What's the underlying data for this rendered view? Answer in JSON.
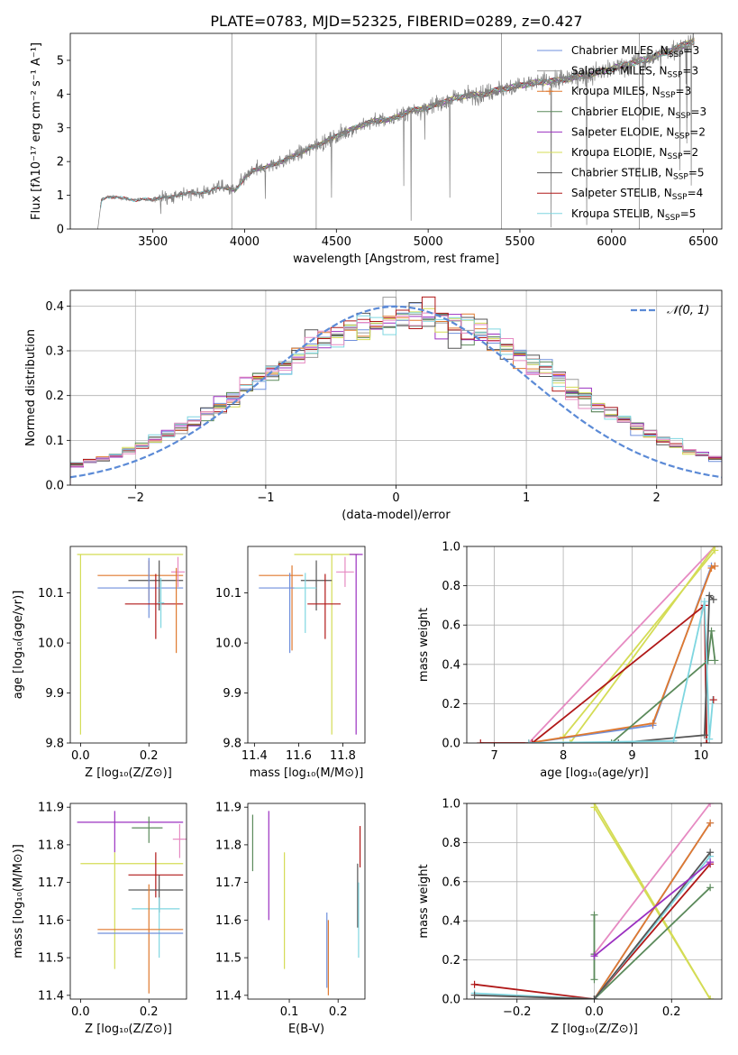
{
  "figure": {
    "title": "PLATE=0783, MJD=52325, FIBERID=0289, z=0.427"
  },
  "colors": {
    "chabrier_miles": "#6f8fdc",
    "salpeter_miles": "#9b9b9b",
    "kroupa_miles": "#e0792e",
    "chabrier_elodie": "#5b8a5b",
    "salpeter_elodie": "#9b30c0",
    "kroupa_elodie": "#d4dc55",
    "chabrier_stelib": "#555555",
    "salpeter_stelib": "#b01818",
    "kroupa_stelib": "#7fd6e0",
    "pink": "#e68ac2",
    "data": "#808080",
    "gauss": "#5b8ad6"
  },
  "chart_data": [
    {
      "type": "line",
      "id": "spectrum",
      "xlabel": "wavelength [Angstrom, rest frame]",
      "ylabel": "Flux [fλ10⁻¹⁷ erg cm⁻² s⁻¹ A⁻¹]",
      "xlim": [
        3050,
        6600
      ],
      "ylim": [
        0,
        5.8
      ],
      "xticks": [
        3500,
        4000,
        4500,
        5000,
        5500,
        6000,
        6500
      ],
      "yticks": [
        0,
        1,
        2,
        3,
        4,
        5
      ],
      "legend": "top-right",
      "legend_entries": [
        {
          "key": "chabrier_miles",
          "label": "Chabrier MILES, N",
          "sub": "SSP",
          "suffix": "=3"
        },
        {
          "key": "salpeter_miles",
          "label": "Salpeter MILES, N",
          "sub": "SSP",
          "suffix": "=3"
        },
        {
          "key": "kroupa_miles",
          "label": "Kroupa MILES, N",
          "sub": "SSP",
          "suffix": "=3"
        },
        {
          "key": "chabrier_elodie",
          "label": "Chabrier ELODIE, N",
          "sub": "SSP",
          "suffix": "=3"
        },
        {
          "key": "salpeter_elodie",
          "label": "Salpeter ELODIE, N",
          "sub": "SSP",
          "suffix": "=2"
        },
        {
          "key": "kroupa_elodie",
          "label": "Kroupa ELODIE, N",
          "sub": "SSP",
          "suffix": "=2"
        },
        {
          "key": "chabrier_stelib",
          "label": "Chabrier STELIB, N",
          "sub": "SSP",
          "suffix": "=5"
        },
        {
          "key": "salpeter_stelib",
          "label": "Salpeter STELIB, N",
          "sub": "SSP",
          "suffix": "=4"
        },
        {
          "key": "kroupa_stelib",
          "label": "Kroupa STELIB, N",
          "sub": "SSP",
          "suffix": "=5"
        }
      ],
      "continuum": {
        "x": [
          3200,
          3220,
          3250,
          3300,
          3350,
          3400,
          3450,
          3500,
          3550,
          3600,
          3650,
          3700,
          3750,
          3800,
          3850,
          3900,
          3950,
          4000,
          4050,
          4100,
          4200,
          4300,
          4400,
          4500,
          4600,
          4700,
          4800,
          4900,
          5000,
          5100,
          5200,
          5300,
          5400,
          5500,
          5600,
          5700,
          5800,
          5900,
          6000,
          6100,
          6200,
          6300,
          6400,
          6450
        ],
        "y": [
          0,
          0.85,
          0.95,
          0.95,
          0.9,
          0.85,
          0.9,
          0.85,
          0.95,
          0.95,
          1.0,
          1.1,
          1.05,
          1.1,
          1.25,
          1.2,
          1.15,
          1.5,
          1.75,
          1.8,
          2.0,
          2.25,
          2.5,
          2.75,
          3.0,
          3.2,
          3.25,
          3.5,
          3.6,
          3.8,
          3.95,
          4.0,
          4.15,
          4.25,
          4.35,
          4.4,
          4.5,
          4.6,
          4.75,
          4.9,
          5.05,
          5.25,
          5.45,
          5.6
        ]
      }
    },
    {
      "type": "histogram",
      "id": "residuals",
      "xlabel": "(data-model)/error",
      "ylabel": "Normed distribution",
      "xlim": [
        -2.5,
        2.5
      ],
      "ylim": [
        0,
        0.435
      ],
      "xticks": [
        -2,
        -1,
        0,
        1,
        2
      ],
      "yticks": [
        0.0,
        0.1,
        0.2,
        0.3,
        0.4
      ],
      "bin_edges_range": [
        -2.5,
        2.5
      ],
      "n_bins": 50,
      "gauss_label": "𝒩(0, 1)",
      "legend": "top-right"
    },
    {
      "type": "errorbar",
      "id": "age_vs_Z",
      "xlabel": "Z [log₁₀(Z/Z⊙)]",
      "ylabel": "age  [log₁₀(age/yr)]",
      "xlim": [
        -0.03,
        0.31
      ],
      "ylim": [
        9.8,
        10.193
      ],
      "xticks": [
        0.0,
        0.2
      ],
      "yticks": [
        9.8,
        9.9,
        10.0,
        10.1
      ],
      "points": [
        {
          "c": "kroupa_elodie",
          "x": 0.0,
          "xerr": [
            0.01,
            0.3
          ],
          "y": 10.177,
          "yerr": [
            0.36,
            0.0
          ]
        },
        {
          "c": "kroupa_miles",
          "x": 0.2,
          "xerr": [
            0.15,
            0.1
          ],
          "y": 10.135,
          "yerr": [
            0.05,
            0.03
          ]
        },
        {
          "c": "chabrier_stelib",
          "x": 0.23,
          "xerr": [
            0.09,
            0.07
          ],
          "y": 10.125,
          "yerr": [
            0.06,
            0.04
          ]
        },
        {
          "c": "chabrier_miles",
          "x": 0.2,
          "xerr": [
            0.15,
            0.1
          ],
          "y": 10.11,
          "yerr": [
            0.06,
            0.06
          ]
        },
        {
          "c": "salpeter_stelib",
          "x": 0.22,
          "xerr": [
            0.09,
            0.08
          ],
          "y": 10.078,
          "yerr": [
            0.07,
            0.06
          ]
        },
        {
          "c": "kroupa_stelib",
          "x": 0.235,
          "xerr": [
            0.01,
            0.01
          ],
          "y": 10.08,
          "yerr": [
            0.05,
            0.05
          ]
        },
        {
          "c": "pink",
          "x": 0.285,
          "xerr": [
            0.02,
            0.02
          ],
          "y": 10.142,
          "yerr": [
            0.03,
            0.03
          ]
        },
        {
          "c": "kroupa_miles",
          "x": 0.28,
          "xerr": [
            0.0,
            0.0
          ],
          "y": 10.13,
          "yerr": [
            0.15,
            0.02
          ]
        }
      ]
    },
    {
      "type": "errorbar",
      "id": "age_vs_mass",
      "xlabel": "mass [log₁₀(M/M⊙)]",
      "ylabel": "",
      "xlim": [
        11.37,
        11.9
      ],
      "ylim": [
        9.8,
        10.193
      ],
      "xticks": [
        11.4,
        11.6,
        11.8
      ],
      "yticks": [
        9.8,
        9.9,
        10.0,
        10.1
      ],
      "points": [
        {
          "c": "kroupa_elodie",
          "x": 11.75,
          "xerr": [
            0.17,
            0.12
          ],
          "y": 10.177,
          "yerr": [
            0.36,
            0.0
          ]
        },
        {
          "c": "kroupa_miles",
          "x": 11.57,
          "xerr": [
            0.15,
            0.05
          ],
          "y": 10.135,
          "yerr": [
            0.15,
            0.02
          ]
        },
        {
          "c": "chabrier_stelib",
          "x": 11.68,
          "xerr": [
            0.07,
            0.07
          ],
          "y": 10.125,
          "yerr": [
            0.06,
            0.04
          ]
        },
        {
          "c": "chabrier_miles",
          "x": 11.56,
          "xerr": [
            0.14,
            0.06
          ],
          "y": 10.11,
          "yerr": [
            0.13,
            0.03
          ]
        },
        {
          "c": "salpeter_stelib",
          "x": 11.72,
          "xerr": [
            0.08,
            0.07
          ],
          "y": 10.078,
          "yerr": [
            0.07,
            0.06
          ]
        },
        {
          "c": "kroupa_stelib",
          "x": 11.63,
          "xerr": [
            0.05,
            0.05
          ],
          "y": 10.11,
          "yerr": [
            0.09,
            0.03
          ]
        },
        {
          "c": "pink",
          "x": 11.81,
          "xerr": [
            0.04,
            0.04
          ],
          "y": 10.142,
          "yerr": [
            0.03,
            0.03
          ]
        },
        {
          "c": "salpeter_elodie",
          "x": 11.86,
          "xerr": [
            0.03,
            0.03
          ],
          "y": 10.177,
          "yerr": [
            0.36,
            0.0
          ]
        }
      ]
    },
    {
      "type": "line",
      "id": "cum_weight_vs_age",
      "xlabel": "age  [log₁₀(age/yr)]",
      "ylabel": "mass weight",
      "xlim": [
        6.6,
        10.3
      ],
      "ylim": [
        0,
        1
      ],
      "xticks": [
        7,
        8,
        9,
        10
      ],
      "yticks": [
        0.0,
        0.2,
        0.4,
        0.6,
        0.8,
        1.0
      ],
      "series": [
        {
          "c": "pink",
          "x": [
            7.5,
            10.2
          ],
          "y": [
            0.0,
            1.0
          ]
        },
        {
          "c": "kroupa_elodie",
          "x": [
            8.1,
            10.2
          ],
          "y": [
            0.0,
            1.0
          ]
        },
        {
          "c": "kroupa_elodie",
          "x": [
            8.0,
            10.2
          ],
          "y": [
            0.03,
            0.98
          ]
        },
        {
          "c": "chabrier_miles",
          "x": [
            7.5,
            9.3,
            10.15,
            10.2
          ],
          "y": [
            0.0,
            0.09,
            0.9,
            0.9
          ]
        },
        {
          "c": "kroupa_miles",
          "x": [
            7.5,
            9.3,
            10.15,
            10.2
          ],
          "y": [
            0.0,
            0.1,
            0.89,
            0.9
          ]
        },
        {
          "c": "salpeter_stelib",
          "x": [
            6.8,
            7.55,
            10.05,
            10.08
          ],
          "y": [
            0.0,
            0.0,
            0.7,
            0.0
          ]
        },
        {
          "c": "chabrier_elodie",
          "x": [
            8.7,
            10.1,
            10.15,
            10.2
          ],
          "y": [
            0.0,
            0.42,
            0.57,
            0.42
          ]
        },
        {
          "c": "chabrier_stelib",
          "x": [
            8.8,
            10.05,
            10.12,
            10.18
          ],
          "y": [
            0.0,
            0.04,
            0.75,
            0.73
          ]
        },
        {
          "c": "kroupa_stelib",
          "x": [
            7.5,
            9.6,
            10.05,
            10.12,
            10.17
          ],
          "y": [
            0.0,
            0.01,
            0.72,
            0.02,
            0.22
          ]
        },
        {
          "c": "salpeter_stelib",
          "x": [
            10.18
          ],
          "y": [
            0.22
          ]
        }
      ]
    },
    {
      "type": "errorbar",
      "id": "mass_vs_Z",
      "xlabel": "Z [log₁₀(Z/Z⊙)]",
      "ylabel": "mass [log₁₀(M/M⊙)]",
      "xlim": [
        -0.03,
        0.31
      ],
      "ylim": [
        11.39,
        11.91
      ],
      "xticks": [
        0.0,
        0.2
      ],
      "yticks": [
        11.4,
        11.5,
        11.6,
        11.7,
        11.8,
        11.9
      ],
      "points": [
        {
          "c": "salpeter_elodie",
          "x": 0.1,
          "xerr": [
            0.11,
            0.2
          ],
          "y": 11.86,
          "yerr": [
            0.08,
            0.03
          ]
        },
        {
          "c": "chabrier_elodie",
          "x": 0.2,
          "xerr": [
            0.05,
            0.04
          ],
          "y": 11.845,
          "yerr": [
            0.04,
            0.03
          ]
        },
        {
          "c": "pink",
          "x": 0.29,
          "xerr": [
            0.02,
            0.02
          ],
          "y": 11.815,
          "yerr": [
            0.05,
            0.04
          ]
        },
        {
          "c": "kroupa_elodie",
          "x": 0.1,
          "xerr": [
            0.1,
            0.2
          ],
          "y": 11.75,
          "yerr": [
            0.28,
            0.03
          ]
        },
        {
          "c": "salpeter_stelib",
          "x": 0.22,
          "xerr": [
            0.08,
            0.08
          ],
          "y": 11.72,
          "yerr": [
            0.06,
            0.06
          ]
        },
        {
          "c": "chabrier_stelib",
          "x": 0.23,
          "xerr": [
            0.09,
            0.07
          ],
          "y": 11.68,
          "yerr": [
            0.06,
            0.04
          ]
        },
        {
          "c": "kroupa_stelib",
          "x": 0.23,
          "xerr": [
            0.08,
            0.06
          ],
          "y": 11.63,
          "yerr": [
            0.13,
            0.03
          ]
        },
        {
          "c": "kroupa_miles",
          "x": 0.2,
          "xerr": [
            0.15,
            0.1
          ],
          "y": 11.575,
          "yerr": [
            0.17,
            0.12
          ]
        },
        {
          "c": "chabrier_miles",
          "x": 0.2,
          "xerr": [
            0.15,
            0.1
          ],
          "y": 11.565,
          "yerr": [
            0.0,
            0.0
          ]
        }
      ]
    },
    {
      "type": "errorbar",
      "id": "mass_vs_ebv",
      "xlabel": "E(B-V)",
      "ylabel": "",
      "xlim": [
        0.015,
        0.255
      ],
      "ylim": [
        11.39,
        11.91
      ],
      "xticks": [
        0.1,
        0.2
      ],
      "yticks": [
        11.4,
        11.5,
        11.6,
        11.7,
        11.8,
        11.9
      ],
      "points": [
        {
          "c": "chabrier_elodie",
          "x": 0.025,
          "xerr": [
            0.0,
            0.0
          ],
          "y": 11.8,
          "yerr": [
            0.07,
            0.08
          ]
        },
        {
          "c": "salpeter_elodie",
          "x": 0.058,
          "xerr": [
            0.0,
            0.0
          ],
          "y": 11.75,
          "yerr": [
            0.15,
            0.14
          ]
        },
        {
          "c": "kroupa_elodie",
          "x": 0.09,
          "xerr": [
            0.0,
            0.0
          ],
          "y": 11.63,
          "yerr": [
            0.16,
            0.15
          ]
        },
        {
          "c": "chabrier_miles",
          "x": 0.177,
          "xerr": [
            0.0,
            0.0
          ],
          "y": 11.52,
          "yerr": [
            0.1,
            0.1
          ]
        },
        {
          "c": "kroupa_miles",
          "x": 0.18,
          "xerr": [
            0.0,
            0.0
          ],
          "y": 11.5,
          "yerr": [
            0.1,
            0.1
          ]
        },
        {
          "c": "chabrier_stelib",
          "x": 0.24,
          "xerr": [
            0.0,
            0.0
          ],
          "y": 11.66,
          "yerr": [
            0.08,
            0.09
          ]
        },
        {
          "c": "kroupa_stelib",
          "x": 0.242,
          "xerr": [
            0.0,
            0.0
          ],
          "y": 11.6,
          "yerr": [
            0.1,
            0.1
          ]
        },
        {
          "c": "salpeter_stelib",
          "x": 0.245,
          "xerr": [
            0.0,
            0.0
          ],
          "y": 11.8,
          "yerr": [
            0.06,
            0.05
          ]
        }
      ]
    },
    {
      "type": "line",
      "id": "cum_weight_vs_Z",
      "xlabel": "Z [log₁₀(Z/Z⊙)]",
      "ylabel": "mass weight",
      "xlim": [
        -0.33,
        0.33
      ],
      "ylim": [
        0,
        1
      ],
      "xticks": [
        -0.2,
        0.0,
        0.2
      ],
      "yticks": [
        0.0,
        0.2,
        0.4,
        0.6,
        0.8,
        1.0
      ],
      "series": [
        {
          "c": "kroupa_elodie",
          "x": [
            0.0,
            0.3
          ],
          "y": [
            1.0,
            0.0
          ]
        },
        {
          "c": "kroupa_elodie",
          "x": [
            0.0,
            0.3
          ],
          "y": [
            0.98,
            0.0
          ]
        },
        {
          "c": "pink",
          "x": [
            0.0,
            0.3
          ],
          "y": [
            0.23,
            1.0
          ]
        },
        {
          "c": "chabrier_miles",
          "x": [
            0.0,
            0.3
          ],
          "y": [
            0.0,
            0.9
          ]
        },
        {
          "c": "kroupa_miles",
          "x": [
            0.0,
            0.3
          ],
          "y": [
            0.0,
            0.9
          ]
        },
        {
          "c": "salpeter_stelib",
          "x": [
            -0.31,
            0.0,
            0.3
          ],
          "y": [
            0.075,
            0.0,
            0.69
          ]
        },
        {
          "c": "chabrier_elodie",
          "x": [
            0.0,
            0.3
          ],
          "y": [
            0.0,
            0.57
          ]
        },
        {
          "c": "kroupa_stelib",
          "x": [
            -0.31,
            0.0,
            0.3
          ],
          "y": [
            0.03,
            0.0,
            0.73
          ]
        },
        {
          "c": "chabrier_stelib",
          "x": [
            -0.31,
            0.0,
            0.3
          ],
          "y": [
            0.02,
            0.0,
            0.75
          ]
        },
        {
          "c": "chabrier_elodie",
          "x": [
            0.0,
            0.0,
            0.0
          ],
          "y": [
            0.1,
            0.43,
            0.23
          ]
        },
        {
          "c": "salpeter_elodie",
          "x": [
            0.0,
            0.3
          ],
          "y": [
            0.22,
            0.7
          ]
        }
      ]
    }
  ]
}
